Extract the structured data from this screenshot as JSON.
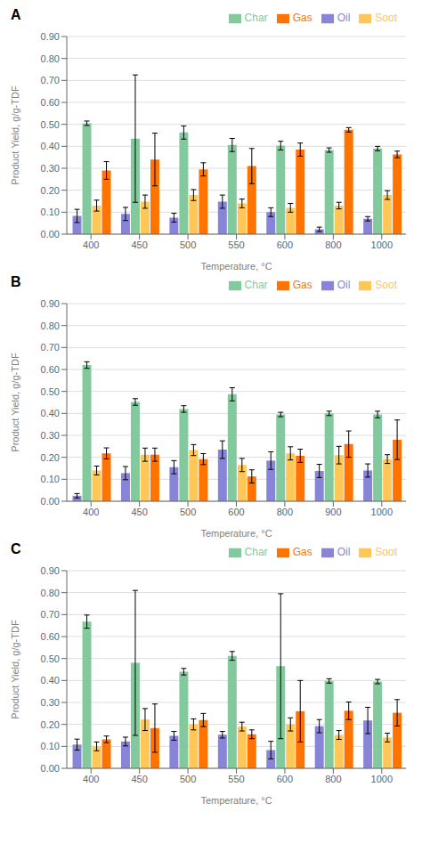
{
  "chart_data": [
    {
      "type": "bar",
      "title": "A",
      "categories": [
        "400",
        "450",
        "500",
        "550",
        "600",
        "800",
        "1000"
      ],
      "x_label": "Temperature, °C",
      "y_label": "Product Yield, g/g-TDF",
      "ylim": [
        0.0,
        0.9
      ],
      "yticks": [
        {
          "value": 0.0,
          "label": "0.00"
        },
        {
          "value": 0.1,
          "label": "0.10"
        },
        {
          "value": 0.2,
          "label": "0.20"
        },
        {
          "value": 0.3,
          "label": "0.30"
        },
        {
          "value": 0.4,
          "label": "0.40"
        },
        {
          "value": 0.5,
          "label": "0.50"
        },
        {
          "value": 0.6,
          "label": "0.60"
        },
        {
          "value": 0.7,
          "label": "0.70"
        },
        {
          "value": 0.8,
          "label": "0.80"
        },
        {
          "value": 0.9,
          "label": "0.90"
        }
      ],
      "grid": "y",
      "legend": "upper right",
      "series": [
        {
          "name": "Oil",
          "color": "#8884d8",
          "values": [
            0.083,
            0.092,
            0.075,
            0.148,
            0.1,
            0.022,
            0.07
          ],
          "errors": [
            0.03,
            0.03,
            0.02,
            0.03,
            0.02,
            0.01,
            0.01
          ]
        },
        {
          "name": "Char",
          "color": "#82ca9d",
          "values": [
            0.505,
            0.435,
            0.463,
            0.406,
            0.403,
            0.383,
            0.39
          ],
          "errors": [
            0.01,
            0.29,
            0.03,
            0.03,
            0.02,
            0.01,
            0.01
          ]
        },
        {
          "name": "Soot",
          "color": "#ffc658",
          "values": [
            0.13,
            0.148,
            0.178,
            0.14,
            0.12,
            0.13,
            0.178
          ],
          "errors": [
            0.025,
            0.03,
            0.025,
            0.02,
            0.02,
            0.015,
            0.02
          ]
        },
        {
          "name": "Gas",
          "color": "#ff7300",
          "values": [
            0.29,
            0.34,
            0.295,
            0.31,
            0.385,
            0.475,
            0.363
          ],
          "errors": [
            0.04,
            0.12,
            0.03,
            0.08,
            0.03,
            0.01,
            0.015
          ]
        }
      ]
    },
    {
      "type": "bar",
      "title": "B",
      "categories": [
        "400",
        "450",
        "500",
        "600",
        "800",
        "900",
        "1000"
      ],
      "x_label": "Temperature, °C",
      "y_label": "Product Yield, g/g-TDF",
      "ylim": [
        0.0,
        0.9
      ],
      "yticks": [
        {
          "value": 0.0,
          "label": "0.00"
        },
        {
          "value": 0.1,
          "label": "0.10"
        },
        {
          "value": 0.2,
          "label": "0.20"
        },
        {
          "value": 0.3,
          "label": "0.30"
        },
        {
          "value": 0.4,
          "label": "0.40"
        },
        {
          "value": 0.5,
          "label": "0.50"
        },
        {
          "value": 0.6,
          "label": "0.60"
        },
        {
          "value": 0.7,
          "label": "0.70"
        },
        {
          "value": 0.8,
          "label": "0.80"
        },
        {
          "value": 0.9,
          "label": "0.90"
        }
      ],
      "grid": "y",
      "legend": "upper right",
      "series": [
        {
          "name": "Oil",
          "color": "#8884d8",
          "values": [
            0.025,
            0.128,
            0.155,
            0.235,
            0.185,
            0.138,
            0.14
          ],
          "errors": [
            0.01,
            0.03,
            0.03,
            0.04,
            0.04,
            0.03,
            0.03
          ]
        },
        {
          "name": "Char",
          "color": "#82ca9d",
          "values": [
            0.62,
            0.452,
            0.42,
            0.487,
            0.395,
            0.4,
            0.395
          ],
          "errors": [
            0.015,
            0.015,
            0.015,
            0.03,
            0.01,
            0.01,
            0.015
          ]
        },
        {
          "name": "Soot",
          "color": "#ffc658",
          "values": [
            0.14,
            0.212,
            0.233,
            0.165,
            0.218,
            0.21,
            0.192
          ],
          "errors": [
            0.02,
            0.03,
            0.025,
            0.03,
            0.03,
            0.04,
            0.02
          ]
        },
        {
          "name": "Gas",
          "color": "#ff7300",
          "values": [
            0.218,
            0.212,
            0.192,
            0.113,
            0.207,
            0.26,
            0.28
          ],
          "errors": [
            0.025,
            0.03,
            0.025,
            0.03,
            0.03,
            0.06,
            0.09
          ]
        }
      ]
    },
    {
      "type": "bar",
      "title": "C",
      "categories": [
        "400",
        "450",
        "500",
        "550",
        "600",
        "800",
        "1000"
      ],
      "x_label": "Temperature, °C",
      "y_label": "Product Yield, g/g-TDF",
      "ylim": [
        0.0,
        0.9
      ],
      "yticks": [
        {
          "value": 0.0,
          "label": "0.00"
        },
        {
          "value": 0.1,
          "label": "0.10"
        },
        {
          "value": 0.2,
          "label": "0.20"
        },
        {
          "value": 0.3,
          "label": "0.30"
        },
        {
          "value": 0.4,
          "label": "0.40"
        },
        {
          "value": 0.5,
          "label": "0.50"
        },
        {
          "value": 0.6,
          "label": "0.60"
        },
        {
          "value": 0.7,
          "label": "0.70"
        },
        {
          "value": 0.8,
          "label": "0.80"
        },
        {
          "value": 0.9,
          "label": "0.90"
        }
      ],
      "grid": "y",
      "legend": "upper right",
      "series": [
        {
          "name": "Oil",
          "color": "#8884d8",
          "values": [
            0.108,
            0.122,
            0.148,
            0.153,
            0.083,
            0.192,
            0.218
          ],
          "errors": [
            0.025,
            0.02,
            0.02,
            0.015,
            0.04,
            0.03,
            0.06
          ]
        },
        {
          "name": "Char",
          "color": "#82ca9d",
          "values": [
            0.668,
            0.48,
            0.44,
            0.512,
            0.465,
            0.398,
            0.395
          ],
          "errors": [
            0.03,
            0.33,
            0.015,
            0.02,
            0.33,
            0.01,
            0.01
          ]
        },
        {
          "name": "Soot",
          "color": "#ffc658",
          "values": [
            0.1,
            0.222,
            0.2,
            0.19,
            0.2,
            0.152,
            0.14
          ],
          "errors": [
            0.02,
            0.05,
            0.025,
            0.02,
            0.03,
            0.02,
            0.02
          ]
        },
        {
          "name": "Gas",
          "color": "#ff7300",
          "values": [
            0.132,
            0.183,
            0.22,
            0.155,
            0.26,
            0.262,
            0.253
          ],
          "errors": [
            0.015,
            0.11,
            0.03,
            0.02,
            0.14,
            0.04,
            0.06
          ]
        }
      ]
    }
  ]
}
